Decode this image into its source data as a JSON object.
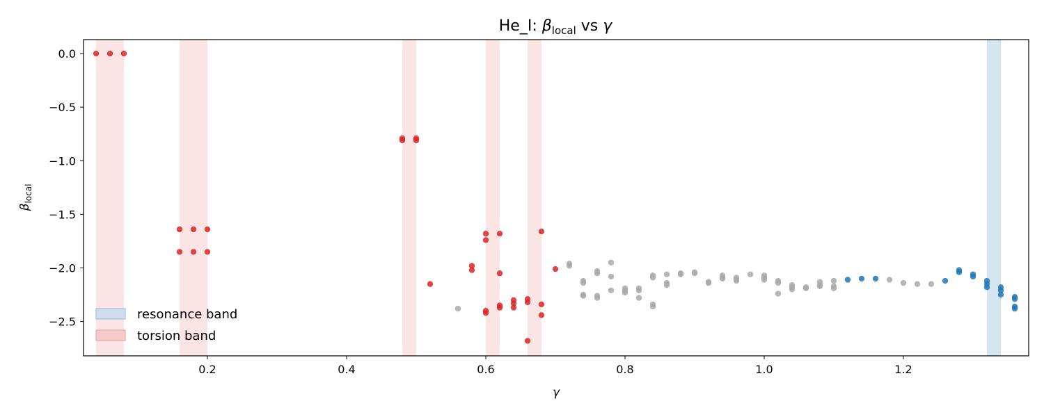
{
  "chart_data": {
    "type": "scatter",
    "title": {
      "prefix": "He_I: ",
      "beta": "β",
      "beta_sub": "local",
      "vs": " vs ",
      "gamma": "γ"
    },
    "xlabel": "γ",
    "ylabel": {
      "beta": "β",
      "sub": "local"
    },
    "xlim": [
      0.022,
      1.38
    ],
    "ylim": [
      -2.82,
      0.13
    ],
    "xticks": [
      0.2,
      0.4,
      0.6,
      0.8,
      1.0,
      1.2
    ],
    "xtick_labels": [
      "0.2",
      "0.4",
      "0.6",
      "0.8",
      "1.0",
      "1.2"
    ],
    "yticks": [
      0.0,
      -0.5,
      -1.0,
      -1.5,
      -2.0,
      -2.5
    ],
    "ytick_labels": [
      "0.0",
      "−0.5",
      "−1.0",
      "−1.5",
      "−2.0",
      "−2.5"
    ],
    "grid": false,
    "legend_position": "lower-left",
    "legend": [
      {
        "label": "resonance band",
        "fill": "#c6dcec",
        "edge": "#8fb8da"
      },
      {
        "label": "torsion band",
        "fill": "#f4c6c6",
        "edge": "#e89c9c"
      }
    ],
    "bands": [
      {
        "type": "torsion",
        "x_start": 0.04,
        "x_end": 0.08
      },
      {
        "type": "torsion",
        "x_start": 0.16,
        "x_end": 0.2
      },
      {
        "type": "torsion",
        "x_start": 0.48,
        "x_end": 0.5
      },
      {
        "type": "torsion",
        "x_start": 0.6,
        "x_end": 0.62
      },
      {
        "type": "torsion",
        "x_start": 0.66,
        "x_end": 0.68
      },
      {
        "type": "resonance",
        "x_start": 1.32,
        "x_end": 1.34
      }
    ],
    "series": [
      {
        "key": "neutral",
        "color": "#a9a9a9",
        "points": [
          [
            0.56,
            -2.38
          ],
          [
            0.72,
            -1.96
          ],
          [
            0.72,
            -1.98
          ],
          [
            0.74,
            -2.12
          ],
          [
            0.74,
            -2.14
          ],
          [
            0.74,
            -2.25
          ],
          [
            0.74,
            -2.26
          ],
          [
            0.76,
            -2.03
          ],
          [
            0.76,
            -2.05
          ],
          [
            0.76,
            -2.26
          ],
          [
            0.76,
            -2.28
          ],
          [
            0.78,
            -1.95
          ],
          [
            0.78,
            -2.08
          ],
          [
            0.78,
            -2.21
          ],
          [
            0.8,
            -2.19
          ],
          [
            0.8,
            -2.21
          ],
          [
            0.8,
            -2.23
          ],
          [
            0.82,
            -2.19
          ],
          [
            0.82,
            -2.21
          ],
          [
            0.82,
            -2.28
          ],
          [
            0.84,
            -2.07
          ],
          [
            0.84,
            -2.09
          ],
          [
            0.84,
            -2.34
          ],
          [
            0.84,
            -2.36
          ],
          [
            0.86,
            -2.06
          ],
          [
            0.86,
            -2.14
          ],
          [
            0.86,
            -2.16
          ],
          [
            0.88,
            -2.05
          ],
          [
            0.88,
            -2.06
          ],
          [
            0.9,
            -2.04
          ],
          [
            0.9,
            -2.05
          ],
          [
            0.92,
            -2.13
          ],
          [
            0.92,
            -2.14
          ],
          [
            0.94,
            -2.07
          ],
          [
            0.94,
            -2.09
          ],
          [
            0.94,
            -2.1
          ],
          [
            0.96,
            -2.09
          ],
          [
            0.96,
            -2.11
          ],
          [
            0.96,
            -2.12
          ],
          [
            0.98,
            -2.06
          ],
          [
            1.0,
            -2.07
          ],
          [
            1.0,
            -2.09
          ],
          [
            1.0,
            -2.11
          ],
          [
            1.02,
            -2.12
          ],
          [
            1.02,
            -2.14
          ],
          [
            1.02,
            -2.24
          ],
          [
            1.04,
            -2.16
          ],
          [
            1.04,
            -2.18
          ],
          [
            1.04,
            -2.2
          ],
          [
            1.06,
            -2.18
          ],
          [
            1.06,
            -2.19
          ],
          [
            1.08,
            -2.13
          ],
          [
            1.08,
            -2.16
          ],
          [
            1.08,
            -2.17
          ],
          [
            1.1,
            -2.12
          ],
          [
            1.1,
            -2.17
          ],
          [
            1.1,
            -2.19
          ],
          [
            1.18,
            -2.11
          ],
          [
            1.2,
            -2.14
          ],
          [
            1.22,
            -2.15
          ],
          [
            1.24,
            -2.15
          ]
        ]
      },
      {
        "key": "torsion",
        "color": "#d62728",
        "points": [
          [
            0.04,
            0.0
          ],
          [
            0.06,
            0.0
          ],
          [
            0.08,
            0.0
          ],
          [
            0.16,
            -1.64
          ],
          [
            0.18,
            -1.64
          ],
          [
            0.2,
            -1.64
          ],
          [
            0.16,
            -1.85
          ],
          [
            0.18,
            -1.85
          ],
          [
            0.2,
            -1.85
          ],
          [
            0.48,
            -0.79
          ],
          [
            0.48,
            -0.81
          ],
          [
            0.5,
            -0.79
          ],
          [
            0.5,
            -0.81
          ],
          [
            0.52,
            -2.15
          ],
          [
            0.58,
            -1.98
          ],
          [
            0.58,
            -2.02
          ],
          [
            0.6,
            -1.68
          ],
          [
            0.6,
            -1.74
          ],
          [
            0.6,
            -2.4
          ],
          [
            0.6,
            -2.42
          ],
          [
            0.62,
            -1.68
          ],
          [
            0.62,
            -2.05
          ],
          [
            0.62,
            -2.35
          ],
          [
            0.62,
            -2.37
          ],
          [
            0.64,
            -2.3
          ],
          [
            0.64,
            -2.33
          ],
          [
            0.64,
            -2.37
          ],
          [
            0.66,
            -2.29
          ],
          [
            0.66,
            -2.32
          ],
          [
            0.66,
            -2.68
          ],
          [
            0.68,
            -1.66
          ],
          [
            0.68,
            -2.34
          ],
          [
            0.68,
            -2.44
          ],
          [
            0.7,
            -2.01
          ]
        ]
      },
      {
        "key": "resonance",
        "color": "#1f77b4",
        "points": [
          [
            1.12,
            -2.11
          ],
          [
            1.14,
            -2.1
          ],
          [
            1.16,
            -2.1
          ],
          [
            1.26,
            -2.12
          ],
          [
            1.28,
            -2.02
          ],
          [
            1.28,
            -2.04
          ],
          [
            1.3,
            -2.06
          ],
          [
            1.3,
            -2.08
          ],
          [
            1.32,
            -2.12
          ],
          [
            1.32,
            -2.15
          ],
          [
            1.32,
            -2.18
          ],
          [
            1.34,
            -2.18
          ],
          [
            1.34,
            -2.21
          ],
          [
            1.34,
            -2.25
          ],
          [
            1.36,
            -2.27
          ],
          [
            1.36,
            -2.29
          ],
          [
            1.36,
            -2.36
          ],
          [
            1.36,
            -2.38
          ]
        ]
      }
    ]
  }
}
